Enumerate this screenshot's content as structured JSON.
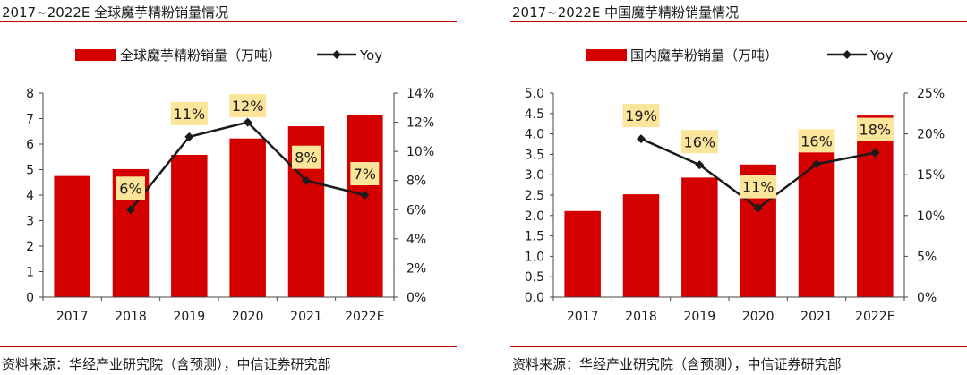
{
  "charts": [
    {
      "title": "2017~2022E 全球魔芋精粉销量情况",
      "source": "资料来源：华经产业研究院（含预测），中信证券研究部",
      "bar_color": "#d40000",
      "line_color": "#1a1a1a",
      "label_bg": "#fbe59a",
      "chart_data": {
        "type": "bar",
        "categories": [
          "2017",
          "2018",
          "2019",
          "2020",
          "2021",
          "2022E"
        ],
        "series": [
          {
            "name": "全球魔芋精粉销量（万吨）",
            "type": "bar",
            "axis": "left",
            "values": [
              4.75,
              5.02,
              5.58,
              6.22,
              6.7,
              7.15
            ]
          },
          {
            "name": "Yoy",
            "type": "line",
            "axis": "right",
            "values": [
              null,
              6,
              11,
              12,
              8,
              7
            ],
            "labels": [
              "",
              "6%",
              "11%",
              "12%",
              "8%",
              "7%"
            ]
          }
        ],
        "ylim_left": [
          0,
          8
        ],
        "yticks_left": [
          "0",
          "1",
          "2",
          "3",
          "4",
          "5",
          "6",
          "7",
          "8"
        ],
        "ylim_right": [
          0,
          14
        ],
        "yticks_right": [
          "0%",
          "2%",
          "4%",
          "6%",
          "8%",
          "10%",
          "12%",
          "14%"
        ],
        "legend_position": "top"
      }
    },
    {
      "title": "2017~2022E 中国魔芋精粉销量情况",
      "source": "资料来源：华经产业研究院（含预测），中信证券研究部",
      "bar_color": "#d40000",
      "line_color": "#1a1a1a",
      "label_bg": "#fbe59a",
      "chart_data": {
        "type": "bar",
        "categories": [
          "2017",
          "2018",
          "2019",
          "2020",
          "2021",
          "2022E"
        ],
        "series": [
          {
            "name": "国内魔芋粉销量（万吨）",
            "type": "bar",
            "axis": "left",
            "values": [
              2.11,
              2.52,
              2.93,
              3.25,
              3.78,
              4.45
            ]
          },
          {
            "name": "Yoy",
            "type": "line",
            "axis": "right",
            "values": [
              null,
              19.4,
              16.2,
              10.9,
              16.3,
              17.7
            ],
            "labels": [
              "",
              "19%",
              "16%",
              "11%",
              "16%",
              "18%"
            ]
          }
        ],
        "ylim_left": [
          0,
          5
        ],
        "yticks_left": [
          "0.0",
          "0.5",
          "1.0",
          "1.5",
          "2.0",
          "2.5",
          "3.0",
          "3.5",
          "4.0",
          "4.5",
          "5.0"
        ],
        "ylim_right": [
          0,
          25
        ],
        "yticks_right": [
          "0%",
          "5%",
          "10%",
          "15%",
          "20%",
          "25%"
        ],
        "legend_position": "top"
      }
    }
  ]
}
